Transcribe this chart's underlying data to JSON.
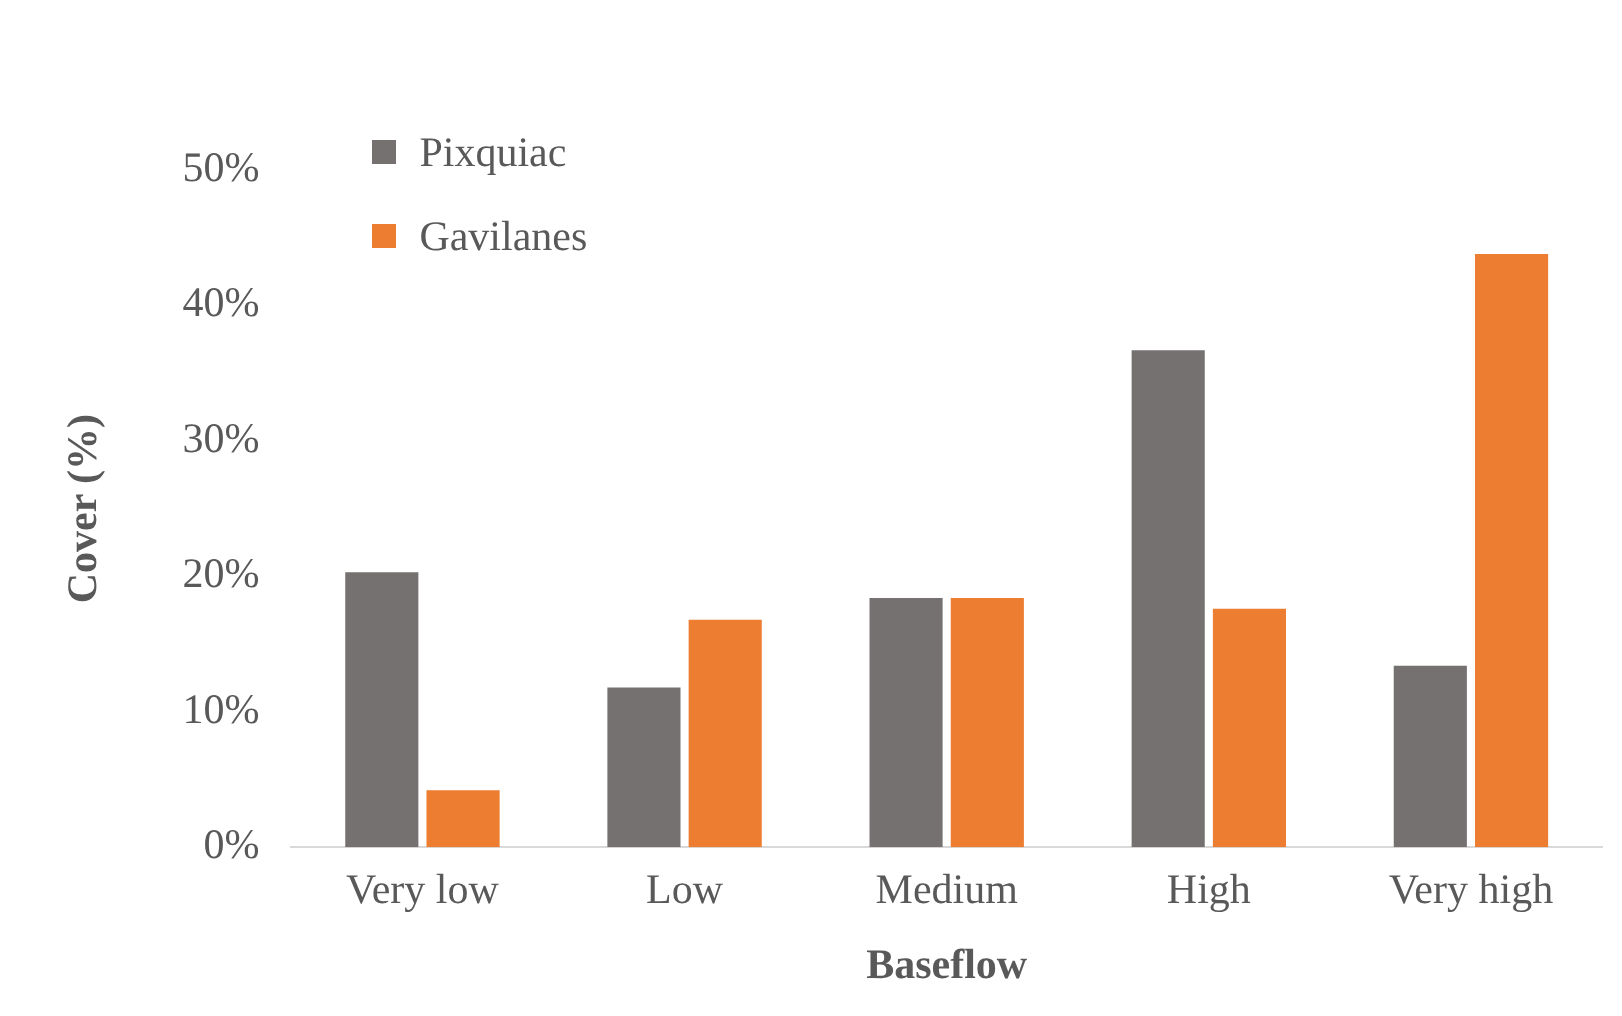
{
  "chart_data": {
    "type": "bar",
    "xlabel": "Baseflow",
    "ylabel": "Cover (%)",
    "categories": [
      "Very low",
      "Low",
      "Medium",
      "High",
      "Very high"
    ],
    "series": [
      {
        "name": "Pixquiac",
        "color": "#767171",
        "values": [
          20.3,
          11.8,
          18.4,
          36.7,
          13.4
        ]
      },
      {
        "name": "Gavilanes",
        "color": "#ed7d31",
        "values": [
          4.2,
          16.8,
          18.4,
          17.6,
          43.8
        ]
      }
    ],
    "ylim": [
      0,
      50
    ],
    "yticks": [
      {
        "value": 0,
        "label": "0%"
      },
      {
        "value": 10,
        "label": "10%"
      },
      {
        "value": 20,
        "label": "20%"
      },
      {
        "value": 30,
        "label": "30%"
      },
      {
        "value": 40,
        "label": "40%"
      },
      {
        "value": 50,
        "label": "50%"
      }
    ],
    "grid": false,
    "legend": "top left"
  }
}
